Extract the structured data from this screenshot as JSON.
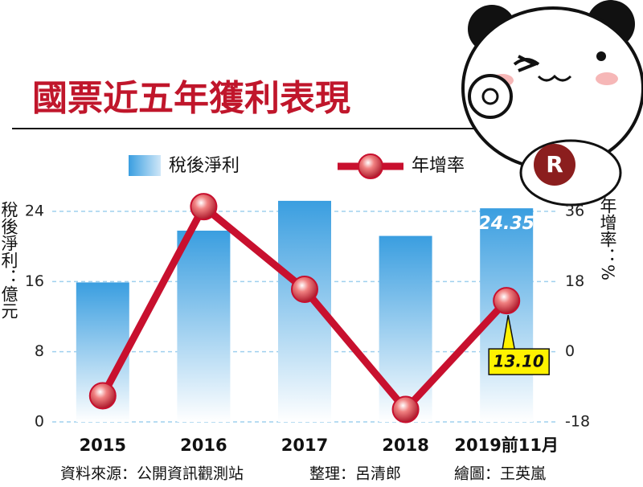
{
  "title": "國票近五年獲利表現",
  "badge": "R",
  "footer": [
    "資料來源：公開資訊觀測站",
    "整理：呂清郎",
    "繪圖：王英嵐"
  ],
  "chart_data": {
    "type": "combo",
    "categories": [
      "2015",
      "2016",
      "2017",
      "2018",
      "2019前11月"
    ],
    "ylabel": "稅後淨利：億元",
    "y2label": "年增率：%",
    "ylim": [
      0,
      24
    ],
    "yticks": [
      0,
      8,
      16,
      24
    ],
    "y2lim": [
      -18,
      36
    ],
    "y2ticks": [
      -18,
      0,
      18,
      36
    ],
    "grid": true,
    "series": [
      {
        "name": "稅後淨利",
        "type": "bar",
        "color": "#3a9ee0",
        "values": [
          15.9,
          21.8,
          25.2,
          21.2,
          24.35
        ],
        "value_labels": [
          null,
          null,
          null,
          null,
          "24.35"
        ]
      },
      {
        "name": "年增率",
        "type": "line",
        "axis": "y2",
        "color": "#c8102e",
        "values": [
          -11.3,
          37.2,
          16.0,
          -14.8,
          13.1
        ],
        "value_labels": [
          null,
          null,
          null,
          null,
          "13.10"
        ]
      }
    ]
  }
}
